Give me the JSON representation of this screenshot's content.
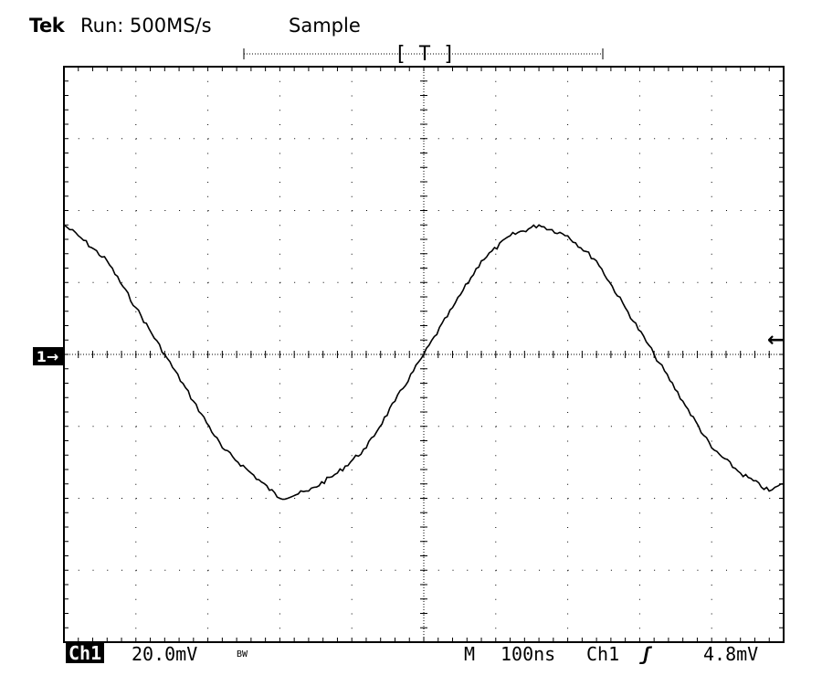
{
  "header": {
    "brand": "Tek",
    "run_status": "Run: 500MS/s",
    "acq_mode": "Sample",
    "trigger_bracket": "[ T ]"
  },
  "footer": {
    "channel_tag": "Ch1",
    "channel_scale": "20.0mV",
    "bw_limit": "BW",
    "timebase_mode": "M",
    "timebase_scale": "100ns",
    "trigger_source": "Ch1",
    "trigger_slope": "ʃ",
    "trigger_level": "4.8mV"
  },
  "markers": {
    "ground": "1→",
    "trigger_level_arrow": "←"
  },
  "chart_data": {
    "type": "line",
    "title": "",
    "xlabel": "",
    "ylabel": "",
    "x_unit": "ns",
    "y_unit": "mV",
    "xlim": [
      -500,
      500
    ],
    "ylim": [
      -80,
      80
    ],
    "grid": true,
    "divisions": {
      "x": 10,
      "y": 8
    },
    "series": [
      {
        "x": [
          -500,
          -480,
          -480,
          -440,
          -440,
          -400,
          -400,
          -360,
          -360,
          -320,
          -320,
          -280,
          -280,
          -240,
          -240,
          -200,
          -200,
          -160,
          -160,
          -120,
          -120,
          -80,
          -80,
          -40,
          -40,
          0,
          0,
          40,
          40,
          80,
          80,
          120,
          120,
          160,
          160,
          200,
          200,
          240,
          240,
          280,
          280,
          320,
          320,
          360,
          360,
          400,
          400,
          440,
          440,
          480,
          480,
          500
        ],
        "y": [
          36,
          33,
          33,
          26,
          26,
          13,
          13,
          0,
          0,
          -13,
          -13,
          -26,
          -26,
          -33,
          -33,
          -40,
          -40,
          -38,
          -38,
          -33,
          -33,
          -26,
          -26,
          -13,
          -13,
          0,
          0,
          13,
          13,
          26,
          26,
          33,
          33,
          36,
          36,
          33,
          33,
          26,
          26,
          13,
          13,
          0,
          0,
          -13,
          -13,
          -26,
          -26,
          -33,
          -33,
          -38,
          -38,
          -36
        ]
      }
    ]
  }
}
